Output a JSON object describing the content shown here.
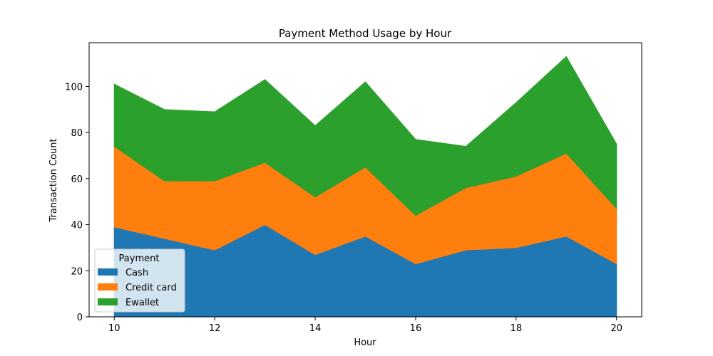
{
  "chart_data": {
    "type": "area",
    "stacked": true,
    "title": "Payment Method Usage by Hour",
    "xlabel": "Hour",
    "ylabel": "Transaction Count",
    "x": [
      10,
      11,
      12,
      13,
      14,
      15,
      16,
      17,
      18,
      19,
      20
    ],
    "xlim": [
      9.5,
      20.5
    ],
    "ylim": [
      0,
      119
    ],
    "xticks": [
      10,
      12,
      14,
      16,
      18,
      20
    ],
    "yticks": [
      0,
      20,
      40,
      60,
      80,
      100
    ],
    "grid": false,
    "legend": {
      "title": "Payment",
      "placement": "lower-left"
    },
    "series": [
      {
        "name": "Cash",
        "color": "#1f77b4",
        "values": [
          39,
          34,
          29,
          40,
          27,
          35,
          23,
          29,
          30,
          35,
          23
        ]
      },
      {
        "name": "Credit card",
        "color": "#ff7f0e",
        "values": [
          35,
          25,
          30,
          27,
          25,
          30,
          21,
          27,
          31,
          36,
          24
        ]
      },
      {
        "name": "Ewallet",
        "color": "#2ca02c",
        "values": [
          27,
          31,
          30,
          36,
          31,
          37,
          33,
          18,
          32,
          42,
          28
        ]
      }
    ]
  }
}
